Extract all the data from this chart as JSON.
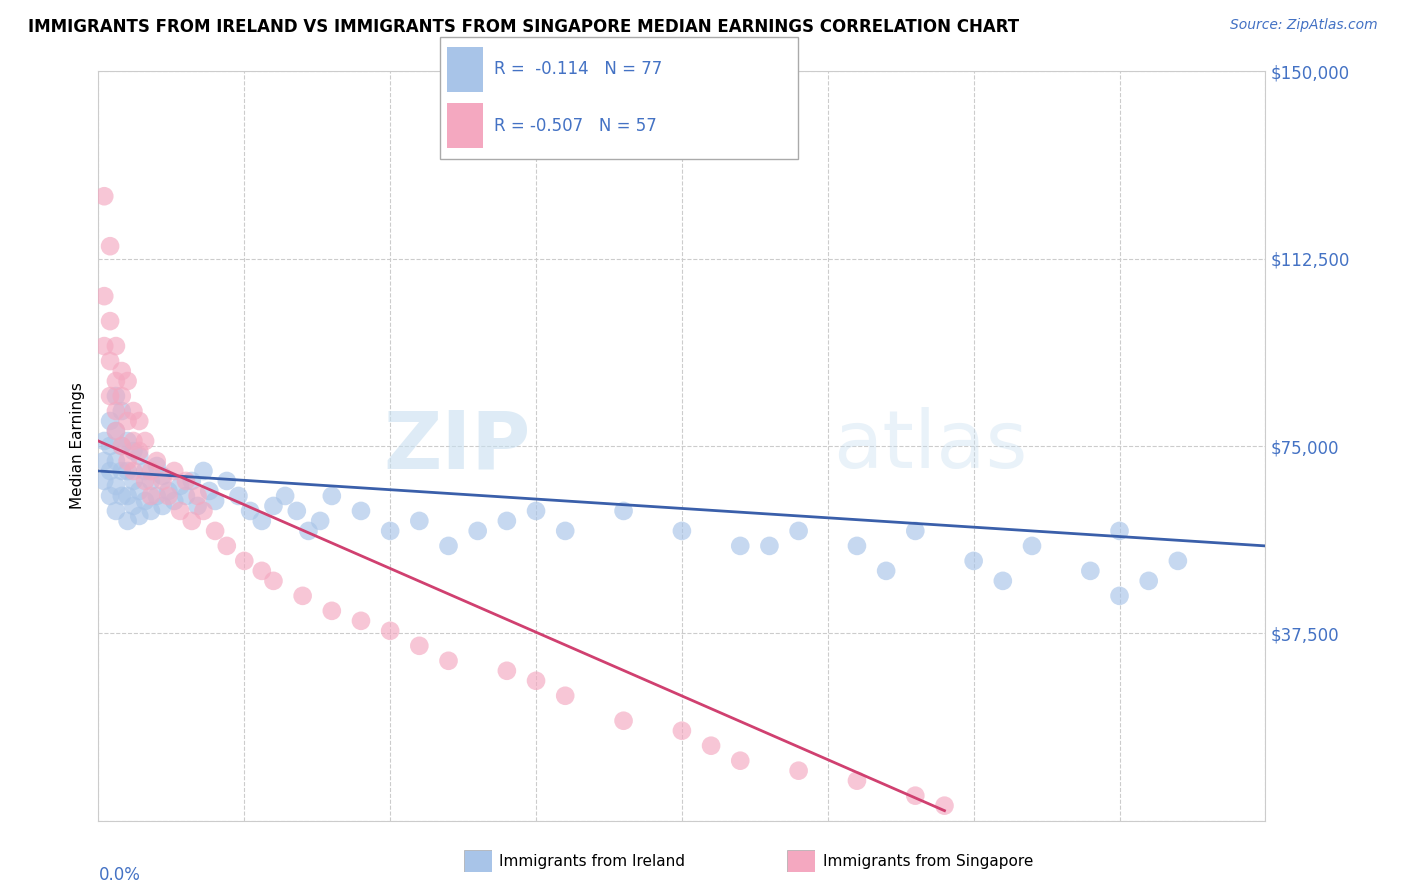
{
  "title": "IMMIGRANTS FROM IRELAND VS IMMIGRANTS FROM SINGAPORE MEDIAN EARNINGS CORRELATION CHART",
  "source": "Source: ZipAtlas.com",
  "ylabel": "Median Earnings",
  "y_ticks": [
    0,
    37500,
    75000,
    112500,
    150000
  ],
  "y_tick_labels": [
    "",
    "$37,500",
    "$75,000",
    "$112,500",
    "$150,000"
  ],
  "x_min": 0.0,
  "x_max": 0.2,
  "y_min": 0,
  "y_max": 150000,
  "ireland_color": "#a8c4e8",
  "singapore_color": "#f4a8c0",
  "ireland_line_color": "#3a5faa",
  "singapore_line_color": "#d04070",
  "ireland_R": -0.114,
  "ireland_N": 77,
  "singapore_R": -0.507,
  "singapore_N": 57,
  "watermark_zip": "ZIP",
  "watermark_atlas": "atlas",
  "legend_label_ireland": "Immigrants from Ireland",
  "legend_label_singapore": "Immigrants from Singapore",
  "ireland_x": [
    0.001,
    0.001,
    0.001,
    0.002,
    0.002,
    0.002,
    0.002,
    0.003,
    0.003,
    0.003,
    0.003,
    0.003,
    0.004,
    0.004,
    0.004,
    0.004,
    0.005,
    0.005,
    0.005,
    0.005,
    0.006,
    0.006,
    0.006,
    0.007,
    0.007,
    0.007,
    0.008,
    0.008,
    0.009,
    0.009,
    0.01,
    0.01,
    0.011,
    0.011,
    0.012,
    0.013,
    0.014,
    0.015,
    0.016,
    0.017,
    0.018,
    0.019,
    0.02,
    0.022,
    0.024,
    0.026,
    0.028,
    0.03,
    0.032,
    0.034,
    0.036,
    0.038,
    0.04,
    0.045,
    0.05,
    0.055,
    0.06,
    0.065,
    0.07,
    0.075,
    0.08,
    0.09,
    0.1,
    0.11,
    0.12,
    0.13,
    0.14,
    0.15,
    0.16,
    0.17,
    0.175,
    0.18,
    0.185,
    0.115,
    0.135,
    0.155,
    0.175
  ],
  "ireland_y": [
    68000,
    72000,
    76000,
    65000,
    70000,
    75000,
    80000,
    62000,
    67000,
    72000,
    78000,
    85000,
    65000,
    70000,
    75000,
    82000,
    60000,
    65000,
    70000,
    76000,
    63000,
    68000,
    74000,
    61000,
    66000,
    73000,
    64000,
    70000,
    62000,
    68000,
    65000,
    71000,
    63000,
    69000,
    66000,
    64000,
    67000,
    65000,
    68000,
    63000,
    70000,
    66000,
    64000,
    68000,
    65000,
    62000,
    60000,
    63000,
    65000,
    62000,
    58000,
    60000,
    65000,
    62000,
    58000,
    60000,
    55000,
    58000,
    60000,
    62000,
    58000,
    62000,
    58000,
    55000,
    58000,
    55000,
    58000,
    52000,
    55000,
    50000,
    58000,
    48000,
    52000,
    55000,
    50000,
    48000,
    45000
  ],
  "singapore_x": [
    0.001,
    0.001,
    0.001,
    0.002,
    0.002,
    0.002,
    0.002,
    0.003,
    0.003,
    0.003,
    0.003,
    0.004,
    0.004,
    0.004,
    0.005,
    0.005,
    0.005,
    0.006,
    0.006,
    0.006,
    0.007,
    0.007,
    0.008,
    0.008,
    0.009,
    0.009,
    0.01,
    0.011,
    0.012,
    0.013,
    0.014,
    0.015,
    0.016,
    0.017,
    0.018,
    0.02,
    0.022,
    0.025,
    0.028,
    0.03,
    0.035,
    0.04,
    0.045,
    0.05,
    0.055,
    0.06,
    0.07,
    0.075,
    0.08,
    0.09,
    0.1,
    0.105,
    0.11,
    0.12,
    0.13,
    0.14,
    0.145
  ],
  "singapore_y": [
    125000,
    105000,
    95000,
    92000,
    100000,
    115000,
    85000,
    88000,
    95000,
    78000,
    82000,
    90000,
    75000,
    85000,
    80000,
    72000,
    88000,
    76000,
    82000,
    70000,
    74000,
    80000,
    68000,
    76000,
    70000,
    65000,
    72000,
    68000,
    65000,
    70000,
    62000,
    68000,
    60000,
    65000,
    62000,
    58000,
    55000,
    52000,
    50000,
    48000,
    45000,
    42000,
    40000,
    38000,
    35000,
    32000,
    30000,
    28000,
    25000,
    20000,
    18000,
    15000,
    12000,
    10000,
    8000,
    5000,
    3000
  ],
  "ireland_line_x0": 0.0,
  "ireland_line_x1": 0.2,
  "ireland_line_y0": 70000,
  "ireland_line_y1": 55000,
  "singapore_line_x0": 0.0,
  "singapore_line_x1": 0.145,
  "singapore_line_y0": 76000,
  "singapore_line_y1": 2000
}
